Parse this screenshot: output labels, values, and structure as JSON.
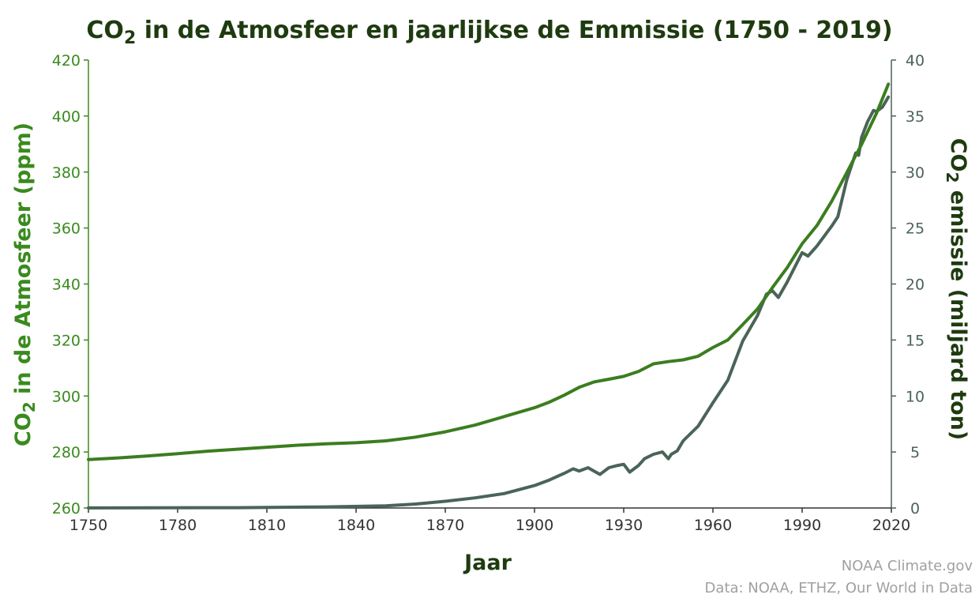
{
  "chart_data": {
    "type": "line",
    "title": {
      "part1": "CO",
      "sub": "2",
      "part2": " in de Atmosfeer en jaarlijkse de Emmissie (1750 - 2019)"
    },
    "xlabel": "Jaar",
    "ylabel_left": {
      "part1": "CO",
      "sub": "2",
      "part2": " in de Atmosfeer (ppm)"
    },
    "ylabel_right": {
      "part1": "CO",
      "sub": "2",
      "part2": " emissie (miljard ton)"
    },
    "xlim": [
      1750,
      2020
    ],
    "ylim_left": [
      260,
      420
    ],
    "ylim_right": [
      0,
      40
    ],
    "x_ticks": [
      1750,
      1780,
      1810,
      1840,
      1870,
      1900,
      1930,
      1960,
      1990,
      2020
    ],
    "y_ticks_left": [
      260,
      280,
      300,
      320,
      340,
      360,
      380,
      400,
      420
    ],
    "y_ticks_right": [
      0,
      5,
      10,
      15,
      20,
      25,
      30,
      35,
      40
    ],
    "grid": false,
    "colors": {
      "left_axis": "#3a8a1e",
      "right_axis": "#4a6458",
      "co2_line": "#3b7d1f",
      "emission_line": "#4a6458",
      "title": "#1e3b10",
      "axis_title": "#1e3b10"
    },
    "series": [
      {
        "axis": "left",
        "x": [
          1750,
          1760,
          1770,
          1780,
          1790,
          1800,
          1810,
          1820,
          1830,
          1840,
          1850,
          1860,
          1870,
          1880,
          1890,
          1900,
          1905,
          1910,
          1915,
          1920,
          1925,
          1930,
          1935,
          1940,
          1945,
          1950,
          1955,
          1960,
          1965,
          1970,
          1975,
          1980,
          1985,
          1990,
          1995,
          2000,
          2005,
          2010,
          2015,
          2019
        ],
        "values": [
          277.3,
          277.9,
          278.6,
          279.4,
          280.3,
          281.0,
          281.7,
          282.4,
          282.9,
          283.3,
          284.0,
          285.3,
          287.2,
          289.6,
          292.7,
          295.8,
          297.8,
          300.3,
          303.1,
          305.0,
          306.0,
          307.0,
          308.8,
          311.5,
          312.3,
          312.9,
          314.2,
          317.3,
          320.0,
          325.5,
          331.1,
          338.7,
          345.9,
          354.4,
          360.9,
          369.7,
          379.8,
          389.9,
          401.0,
          411.4
        ]
      },
      {
        "axis": "right",
        "x": [
          1750,
          1800,
          1830,
          1850,
          1860,
          1870,
          1880,
          1890,
          1900,
          1905,
          1910,
          1913,
          1915,
          1918,
          1920,
          1922,
          1925,
          1928,
          1930,
          1932,
          1935,
          1937,
          1940,
          1943,
          1945,
          1946,
          1948,
          1950,
          1955,
          1960,
          1965,
          1970,
          1975,
          1978,
          1980,
          1982,
          1985,
          1990,
          1992,
          1995,
          2000,
          2002,
          2005,
          2008,
          2009,
          2010,
          2012,
          2014,
          2015,
          2017,
          2019
        ],
        "values": [
          0.01,
          0.03,
          0.1,
          0.2,
          0.35,
          0.6,
          0.9,
          1.3,
          2.0,
          2.5,
          3.1,
          3.5,
          3.3,
          3.6,
          3.3,
          3.0,
          3.6,
          3.8,
          3.9,
          3.2,
          3.8,
          4.4,
          4.8,
          5.0,
          4.4,
          4.8,
          5.1,
          6.0,
          7.3,
          9.4,
          11.4,
          14.9,
          17.2,
          19.1,
          19.4,
          18.8,
          20.2,
          22.8,
          22.5,
          23.4,
          25.2,
          26.0,
          29.3,
          31.7,
          31.5,
          33.1,
          34.5,
          35.5,
          35.4,
          35.8,
          36.7
        ]
      }
    ]
  },
  "credits": {
    "line1": "NOAA Climate.gov",
    "line2": "Data: NOAA, ETHZ, Our World in Data"
  }
}
